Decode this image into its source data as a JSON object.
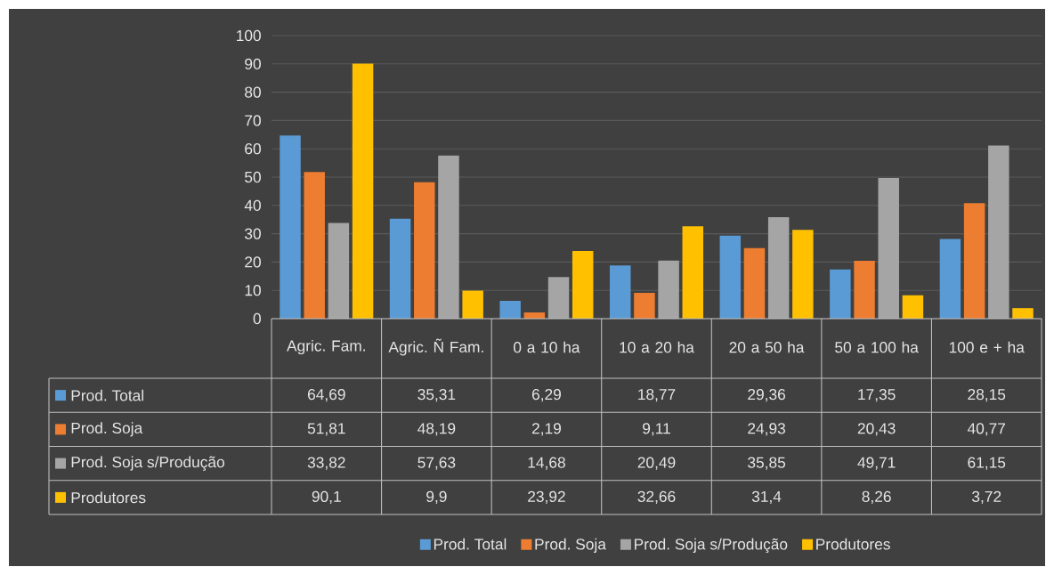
{
  "chart_data": {
    "type": "bar",
    "categories": [
      "Agric. Fam.",
      "Agric. Ñ Fam.",
      "0 a 10 ha",
      "10 a 20 ha",
      "20 a 50 ha",
      "50 a 100 ha",
      "100 e + ha"
    ],
    "series": [
      {
        "name": "Prod. Total",
        "color": "#5b9bd5",
        "values": [
          64.69,
          35.31,
          6.29,
          18.77,
          29.36,
          17.35,
          28.15
        ],
        "value_labels": [
          "64,69",
          "35,31",
          "6,29",
          "18,77",
          "29,36",
          "17,35",
          "28,15"
        ]
      },
      {
        "name": "Prod. Soja",
        "color": "#ed7d31",
        "values": [
          51.81,
          48.19,
          2.19,
          9.11,
          24.93,
          20.43,
          40.77
        ],
        "value_labels": [
          "51,81",
          "48,19",
          "2,19",
          "9,11",
          "24,93",
          "20,43",
          "40,77"
        ]
      },
      {
        "name": "Prod. Soja s/Produção",
        "color": "#a5a5a5",
        "values": [
          33.82,
          57.63,
          14.68,
          20.49,
          35.85,
          49.71,
          61.15
        ],
        "value_labels": [
          "33,82",
          "57,63",
          "14,68",
          "20,49",
          "35,85",
          "49,71",
          "61,15"
        ]
      },
      {
        "name": "Produtores",
        "color": "#ffc000",
        "values": [
          90.1,
          9.9,
          23.92,
          32.66,
          31.4,
          8.26,
          3.72
        ],
        "value_labels": [
          "90,1",
          "9,9",
          "23,92",
          "32,66",
          "31,4",
          "8,26",
          "3,72"
        ]
      }
    ],
    "ylim": [
      0,
      100
    ],
    "yticks": [
      0,
      10,
      20,
      30,
      40,
      50,
      60,
      70,
      80,
      90,
      100
    ],
    "grid": "y",
    "legend": "bottom"
  }
}
